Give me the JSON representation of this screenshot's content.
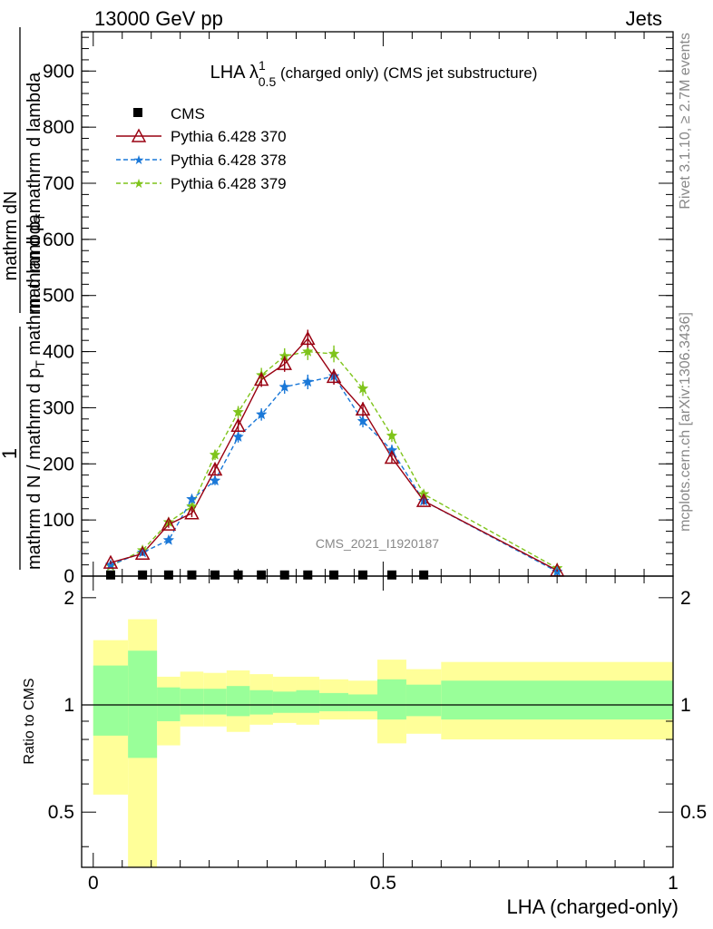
{
  "header": {
    "left": "13000 GeV pp",
    "right": "Jets"
  },
  "side_labels": {
    "rivet": "Rivet 3.1.10, ≥ 2.7M events",
    "mcplots": "mcplots.cern.ch [arXiv:1306.3436]"
  },
  "chart_data": [
    {
      "type": "line",
      "title": {
        "main": "LHA λ",
        "sup": "1",
        "sub": "0.5",
        "rest": " (charged only) (CMS jet substructure)"
      },
      "watermark": "CMS_2021_I1920187",
      "ylabel": {
        "numer": "1",
        "numer2": "mathrm dN",
        "denom_left": "mathrm d N / mathrm d p",
        "denom_right": "mathrm d p",
        "denom_sub": "T",
        "denom_tail1": "mathrm d lambda",
        "denom_mid": "mathrm d p",
        "denom_mid_sub": "T",
        "denom_mid_tail": " mathrm d lambda"
      },
      "ylabel_full": "1 / mathrm d N / mathrm d p_T  ·  mathrm d^2 N / mathrm d p_T mathrm d lambda",
      "ylim": [
        0,
        970
      ],
      "yticks": [
        0,
        100,
        200,
        300,
        400,
        500,
        600,
        700,
        800,
        900
      ],
      "xlim": [
        -0.02,
        1.0
      ],
      "grid": false,
      "legend_position": "top-left",
      "series": [
        {
          "name": "CMS",
          "color": "#000000",
          "marker": "square",
          "x": [
            0.03,
            0.085,
            0.13,
            0.17,
            0.21,
            0.25,
            0.29,
            0.33,
            0.37,
            0.415,
            0.465,
            0.515,
            0.57
          ],
          "y": [
            2,
            2,
            2,
            2,
            2,
            2,
            2,
            2,
            2,
            2,
            2,
            2,
            2
          ]
        },
        {
          "name": "Pythia 6.428 370",
          "color": "#990011",
          "marker": "triangle-open",
          "dash": "solid",
          "x": [
            0.03,
            0.085,
            0.13,
            0.17,
            0.21,
            0.25,
            0.29,
            0.33,
            0.37,
            0.415,
            0.465,
            0.515,
            0.57,
            0.8
          ],
          "y": [
            24,
            40,
            92,
            112,
            190,
            268,
            350,
            378,
            423,
            355,
            297,
            211,
            134,
            10
          ],
          "err": [
            3,
            4,
            6,
            7,
            9,
            11,
            13,
            14,
            16,
            14,
            13,
            10,
            7,
            2
          ]
        },
        {
          "name": "Pythia 6.428 378",
          "color": "#1a78d8",
          "marker": "star",
          "dash": "dashed",
          "x": [
            0.03,
            0.085,
            0.13,
            0.17,
            0.21,
            0.25,
            0.29,
            0.33,
            0.37,
            0.415,
            0.465,
            0.515,
            0.57,
            0.8
          ],
          "y": [
            20,
            42,
            64,
            137,
            170,
            248,
            288,
            337,
            346,
            356,
            276,
            224,
            134,
            8
          ],
          "err": [
            3,
            4,
            5,
            7,
            8,
            10,
            11,
            12,
            13,
            13,
            11,
            10,
            7,
            2
          ]
        },
        {
          "name": "Pythia 6.428 379",
          "color": "#7fc41b",
          "marker": "star",
          "dash": "dashed",
          "x": [
            0.03,
            0.085,
            0.13,
            0.17,
            0.21,
            0.25,
            0.29,
            0.33,
            0.37,
            0.415,
            0.465,
            0.515,
            0.57,
            0.8
          ],
          "y": [
            18,
            46,
            96,
            124,
            216,
            292,
            358,
            392,
            400,
            396,
            334,
            250,
            146,
            14
          ],
          "err": [
            3,
            4,
            6,
            7,
            9,
            11,
            13,
            14,
            15,
            15,
            13,
            11,
            7,
            2
          ]
        }
      ]
    },
    {
      "type": "area",
      "ylabel": "Ratio to CMS",
      "xlabel": "LHA (charged-only)",
      "xlim": [
        -0.02,
        1.0
      ],
      "ylim": [
        0.35,
        2.3
      ],
      "xticks": [
        0,
        0.5,
        1
      ],
      "xticklabels": [
        "0",
        "0.5",
        "1"
      ],
      "yticks": [
        0.5,
        1,
        2
      ],
      "yticklabels": [
        "0.5",
        "1",
        "2"
      ],
      "reference_line": 1,
      "bands": {
        "bin_edges": [
          0.0,
          0.06,
          0.11,
          0.15,
          0.19,
          0.23,
          0.27,
          0.31,
          0.35,
          0.39,
          0.44,
          0.49,
          0.54,
          0.6,
          1.0
        ],
        "yellow_low": [
          0.56,
          0.35,
          0.77,
          0.87,
          0.87,
          0.84,
          0.88,
          0.89,
          0.88,
          0.91,
          0.91,
          0.78,
          0.83,
          0.8
        ],
        "yellow_high": [
          1.52,
          1.74,
          1.2,
          1.24,
          1.23,
          1.25,
          1.22,
          1.2,
          1.2,
          1.18,
          1.17,
          1.34,
          1.26,
          1.32
        ],
        "green_low": [
          0.82,
          0.71,
          0.9,
          0.94,
          0.94,
          0.93,
          0.94,
          0.95,
          0.95,
          0.96,
          0.96,
          0.91,
          0.93,
          0.91
        ],
        "green_high": [
          1.29,
          1.42,
          1.12,
          1.11,
          1.11,
          1.13,
          1.1,
          1.09,
          1.1,
          1.08,
          1.07,
          1.18,
          1.14,
          1.17
        ],
        "yellow_color": "#ffff99",
        "green_color": "#99ff99"
      }
    }
  ]
}
